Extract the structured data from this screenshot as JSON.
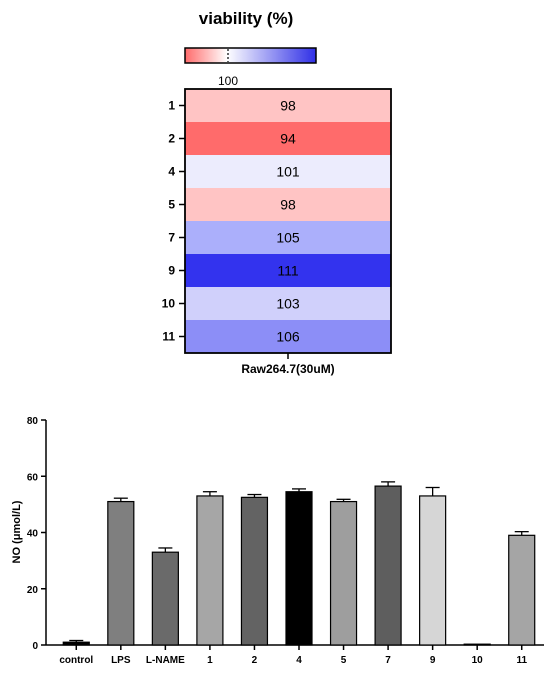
{
  "chart_data": [
    {
      "type": "heatmap",
      "title": "viability (%)",
      "colorbar": {
        "tick_label": "100",
        "low_color": "#ff6b6b",
        "mid_color": "#ffffff",
        "high_color": "#2f2fe6"
      },
      "column_label": "Raw264.7(30uM)",
      "rows": [
        {
          "label": "1",
          "value": "98",
          "color": "#ffc4c4"
        },
        {
          "label": "2",
          "value": "94",
          "color": "#ff6b6b"
        },
        {
          "label": "4",
          "value": "101",
          "color": "#ececfd"
        },
        {
          "label": "5",
          "value": "98",
          "color": "#ffc4c4"
        },
        {
          "label": "7",
          "value": "105",
          "color": "#abaffb"
        },
        {
          "label": "9",
          "value": "111",
          "color": "#3333ee"
        },
        {
          "label": "10",
          "value": "103",
          "color": "#d0d0fb"
        },
        {
          "label": "11",
          "value": "106",
          "color": "#8c8ef7"
        }
      ]
    },
    {
      "type": "bar",
      "ylabel": "NO (μmol/L)",
      "ylim": [
        0,
        80
      ],
      "yticks": [
        "0",
        "20",
        "40",
        "60",
        "80"
      ],
      "categories": [
        "control",
        "LPS",
        "L-NAME",
        "1",
        "2",
        "4",
        "5",
        "7",
        "9",
        "10",
        "11"
      ],
      "values": [
        1,
        51,
        33,
        53,
        52.5,
        54.5,
        51,
        56.5,
        53,
        0.3,
        39
      ],
      "errors": [
        0.6,
        1.2,
        1.5,
        1.5,
        1,
        1,
        0.8,
        1.5,
        3,
        0,
        1.3
      ],
      "colors": [
        "#000000",
        "#7f7f7f",
        "#6a6a6a",
        "#a6a6a6",
        "#636363",
        "#000000",
        "#9e9e9e",
        "#5e5e5e",
        "#d6d6d6",
        "#000000",
        "#a5a5a5"
      ]
    }
  ]
}
